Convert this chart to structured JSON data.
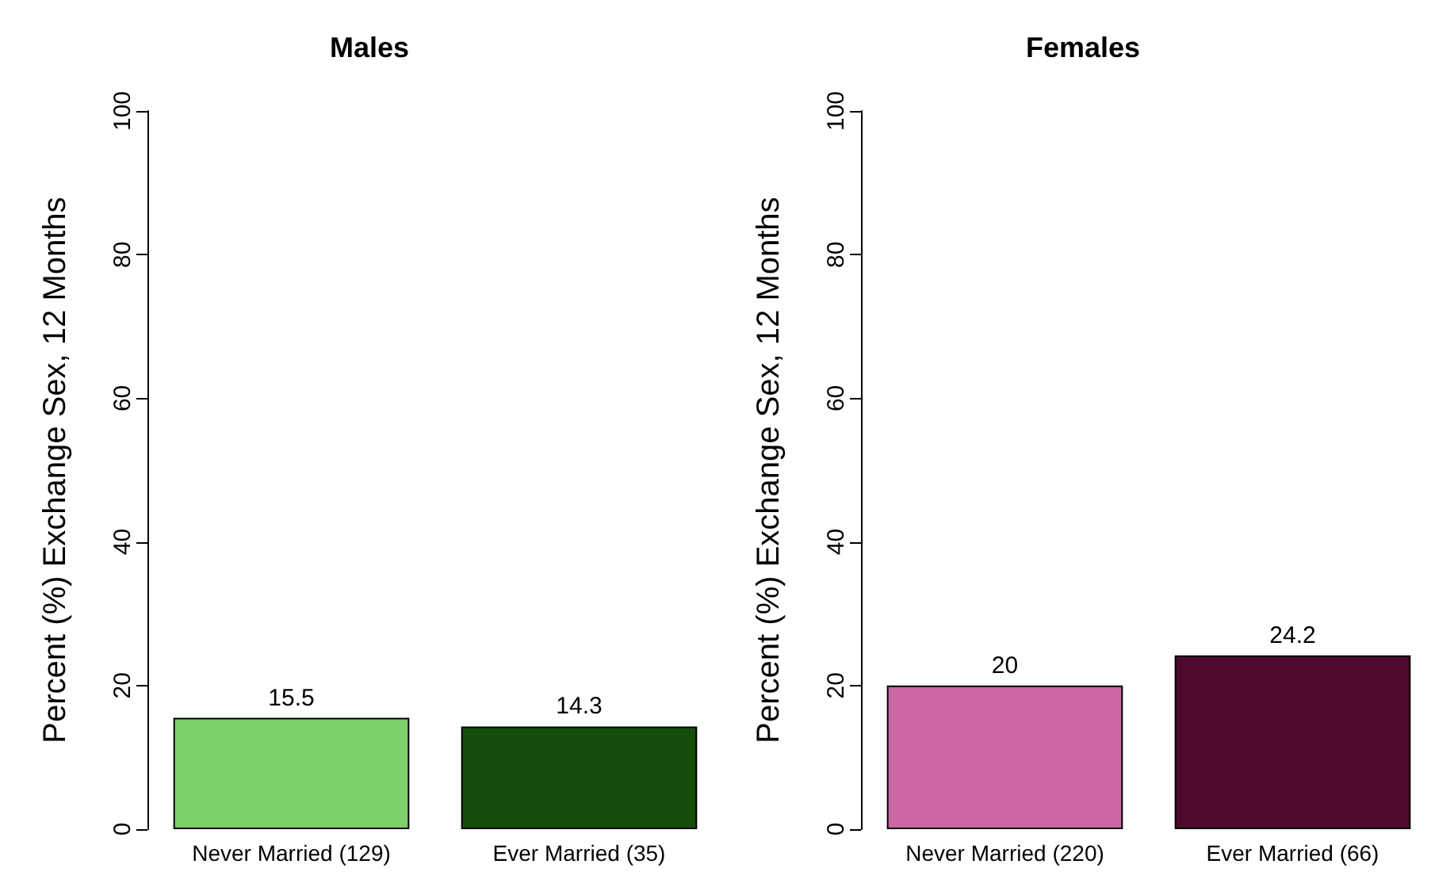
{
  "chart_data": [
    {
      "type": "bar",
      "title": "Males",
      "ylabel": "Percent (%) Exchange Sex, 12 Months",
      "categories": [
        "Never Married (129)",
        "Ever Married (35)"
      ],
      "values": [
        15.5,
        14.3
      ],
      "colors": [
        "#7dd067",
        "#154d0a"
      ],
      "ylim": [
        0,
        100
      ],
      "yticks": [
        0,
        20,
        40,
        60,
        80,
        100
      ],
      "data_labels": true
    },
    {
      "type": "bar",
      "title": "Females",
      "ylabel": "Percent (%) Exchange Sex, 12 Months",
      "categories": [
        "Never Married (220)",
        "Ever Married (66)"
      ],
      "values": [
        20,
        24.2
      ],
      "colors": [
        "#cd67a4",
        "#4e0a2e"
      ],
      "ylim": [
        0,
        100
      ],
      "yticks": [
        0,
        20,
        40,
        60,
        80,
        100
      ],
      "data_labels": true
    }
  ]
}
